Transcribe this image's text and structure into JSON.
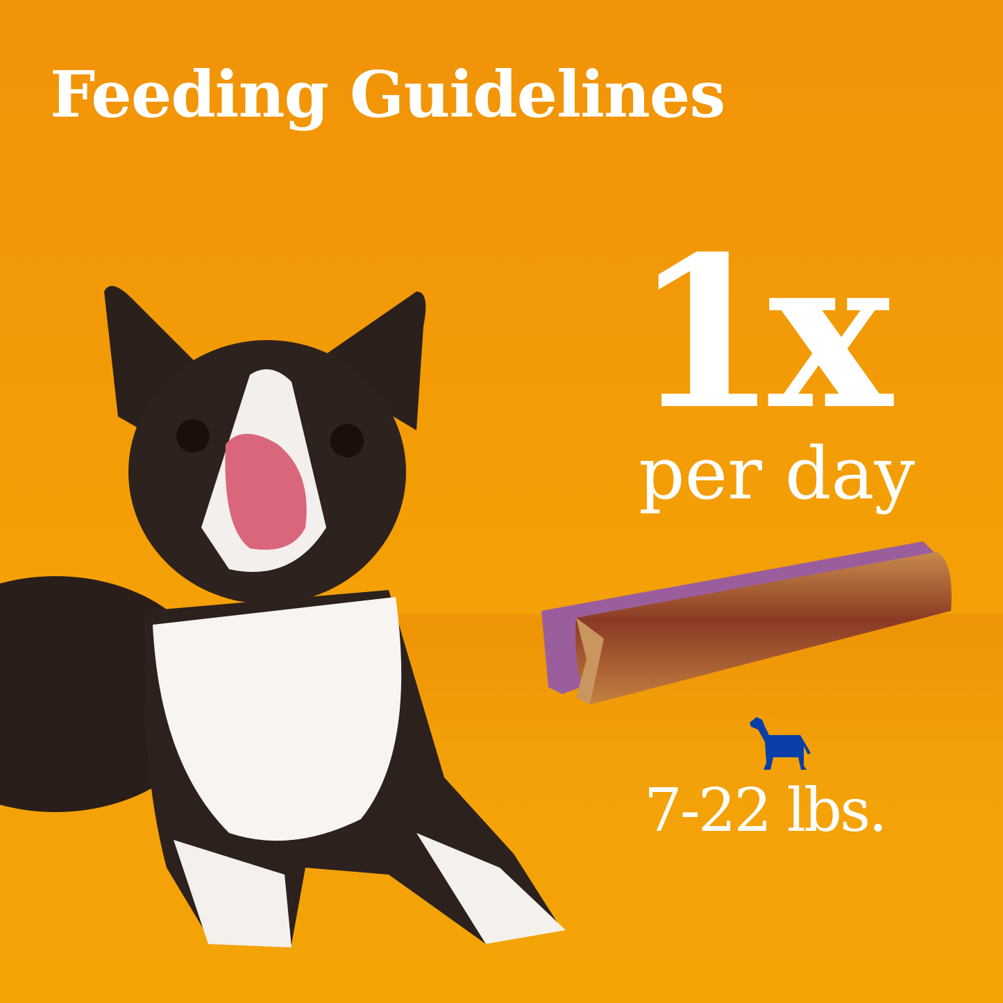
{
  "heading": "Feeding Guidelines",
  "frequency": {
    "count": "1x",
    "unit": "per day"
  },
  "weight_range": "7-22 lbs.",
  "icons": {
    "dog_size": "dog-silhouette-icon",
    "product": "dental-stick"
  },
  "colors": {
    "background": "#f29a0a",
    "text": "#ffffff",
    "dog_icon": "#0b3fa8"
  }
}
